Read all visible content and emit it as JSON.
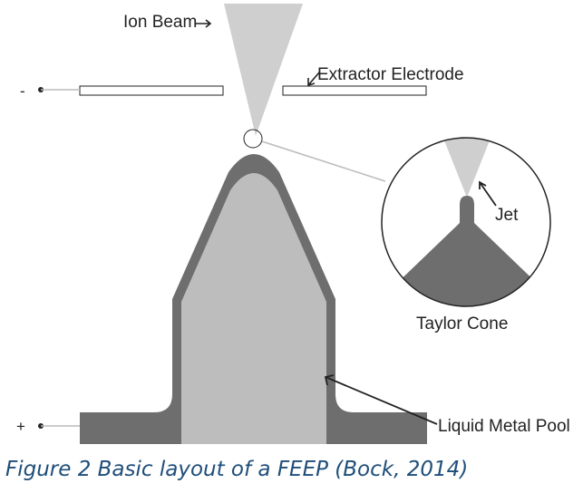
{
  "labels": {
    "ion_beam": "Ion Beam",
    "extractor_electrode": "Extractor Electrode",
    "jet": "Jet",
    "taylor_cone": "Taylor Cone",
    "liquid_metal_pool": "Liquid Metal Pool"
  },
  "terminals": {
    "negative": "-",
    "positive": "+"
  },
  "caption": {
    "text": "Figure 2 Basic layout of a FEEP (Bock, 2014)",
    "color": "#1f4e79"
  },
  "colors": {
    "beam": "#cfcfcf",
    "needle": "#bdbdbd",
    "liquid_metal": "#6e6e6e",
    "outline": "#222222",
    "leader_line": "#bbbbbb"
  }
}
